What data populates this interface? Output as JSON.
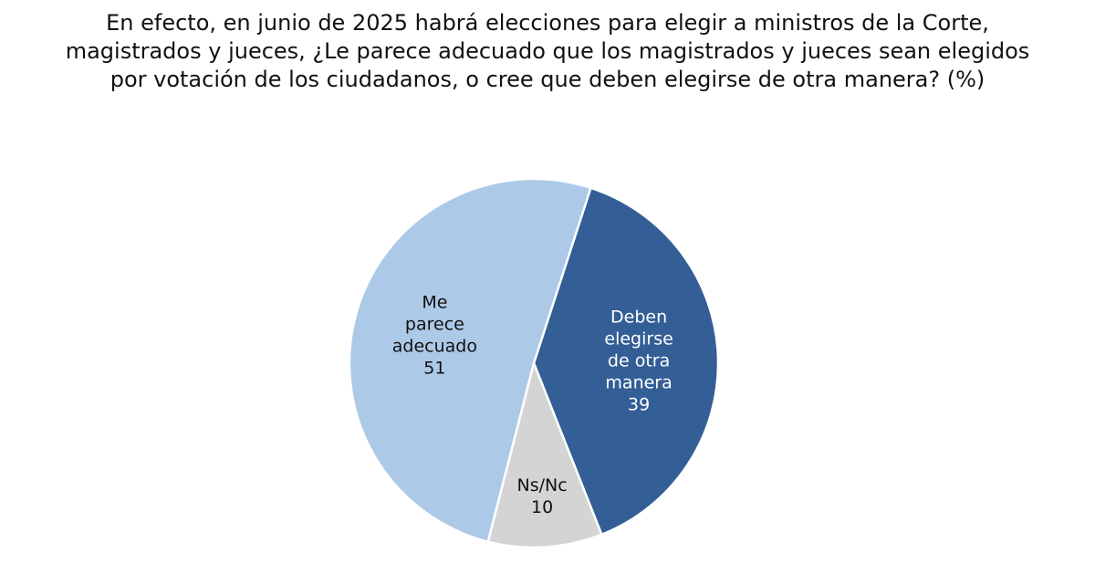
{
  "chart_data": {
    "type": "pie",
    "title_lines": [
      "En efecto, en junio de 2025 habrá elecciones para elegir a ministros de la Corte,",
      "magistrados y jueces, ¿Le parece adecuado que los magistrados y jueces sean elegidos",
      "por votación de los ciudadanos, o cree que deben elegirse de otra manera? (%)"
    ],
    "slices": [
      {
        "name": "Deben elegirse de otra manera",
        "label_lines": [
          "Deben",
          "elegirse",
          "de otra",
          "manera"
        ],
        "value": 39,
        "value_label": "39",
        "color": "#335e96",
        "text_color": "#ffffff"
      },
      {
        "name": "Ns/Nc",
        "label_lines": [
          "Ns/Nc"
        ],
        "value": 10,
        "value_label": "10",
        "color": "#d4d4d4",
        "text_color": "#111111"
      },
      {
        "name": "Me parece adecuado",
        "label_lines": [
          "Me",
          "parece",
          "adecuado"
        ],
        "value": 51,
        "value_label": "51",
        "color": "#adc9e8",
        "text_color": "#111111"
      }
    ]
  }
}
